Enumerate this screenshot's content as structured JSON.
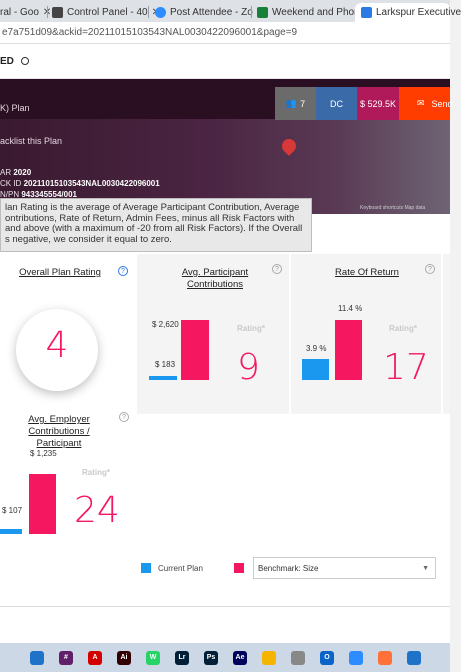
{
  "browser": {
    "tabs": [
      {
        "title": "ral - Goo",
        "color": "#34a853"
      },
      {
        "title": "Control Panel - 40",
        "color": "#444444"
      },
      {
        "title": "Post Attendee - Zo",
        "color": "#2d8cff"
      },
      {
        "title": "Weekend and Phon",
        "color": "#188038"
      },
      {
        "title": "Larkspur Executive",
        "color": "#2c7be5"
      }
    ],
    "close_glyph": "✕",
    "url": "e7a751d09&ackid=20211015103543NAL0030422096001&page=9"
  },
  "header": {
    "status_text": "ED"
  },
  "banner": {
    "plan_name": "K) Plan",
    "backlist": "acklist this Plan",
    "year_label": "AR",
    "year": "2020",
    "ack_label": "CK ID",
    "ack_id": "20211015103543NAL0030422096001",
    "ein_label": "N/PN",
    "ein": "943345554/001",
    "map_note": "Keyboard shortcuts    Map data",
    "stats": {
      "participants": "7",
      "state": "DC",
      "assets": "$ 529.5K",
      "send": "Send"
    }
  },
  "tooltip": {
    "text": "lan Rating is the average of Average Participant Contribution, Average ontributions, Rate of Return, Admin Fees, minus all Risk Factors with and above (with a maximum of -20 from all Risk Factors). If the Overall s negative, we consider it equal to zero."
  },
  "cards": {
    "overall": {
      "title": "Overall Plan Rating",
      "value": "4"
    },
    "avg_participant": {
      "title": "Avg. Participant Contributions",
      "current": "$ 183",
      "benchmark": "$ 2,620",
      "rating_label": "Rating*",
      "rating": "9"
    },
    "rate_of_return": {
      "title": "Rate Of Return",
      "current": "3.9 %",
      "benchmark": "11.4 %",
      "rating_label": "Rating*",
      "rating": "17"
    },
    "avg_employer": {
      "title_line1": "Avg. Employer Contributions /",
      "title_line2": "Participant",
      "current": "$ 107",
      "benchmark": "$ 1,235",
      "rating_label": "Rating*",
      "rating": "24"
    }
  },
  "chart_data": [
    {
      "type": "bar",
      "title": "Avg. Participant Contributions",
      "categories": [
        "Current Plan",
        "Benchmark: Size"
      ],
      "values": [
        183,
        2620
      ]
    },
    {
      "type": "bar",
      "title": "Rate Of Return",
      "categories": [
        "Current Plan",
        "Benchmark: Size"
      ],
      "values": [
        3.9,
        11.4
      ]
    },
    {
      "type": "bar",
      "title": "Avg. Employer Contributions / Participant",
      "categories": [
        "Current Plan",
        "Benchmark: Size"
      ],
      "values": [
        107,
        1235
      ]
    }
  ],
  "legend": {
    "current": "Current Plan",
    "benchmark_select": "Benchmark: Size",
    "current_color": "#1a98f0",
    "benchmark_color": "#f5175f"
  },
  "taskbar": {
    "apps": [
      {
        "name": "mail-app-icon",
        "label": "",
        "color": "#1e73c8"
      },
      {
        "name": "slack-app-icon",
        "label": "#",
        "color": "#611f69"
      },
      {
        "name": "acrobat-app-icon",
        "label": "A",
        "color": "#d40000"
      },
      {
        "name": "illustrator-app-icon",
        "label": "Ai",
        "color": "#330000"
      },
      {
        "name": "whatsapp-app-icon",
        "label": "W",
        "color": "#25d366"
      },
      {
        "name": "lightroom-app-icon",
        "label": "Lr",
        "color": "#001e36"
      },
      {
        "name": "photoshop-app-icon",
        "label": "Ps",
        "color": "#001e36"
      },
      {
        "name": "aftereffects-app-icon",
        "label": "Ae",
        "color": "#00005b"
      },
      {
        "name": "chrome-app-icon",
        "label": "",
        "color": "#f4b400"
      },
      {
        "name": "settings-app-icon",
        "label": "",
        "color": "#888888"
      },
      {
        "name": "outlook-app-icon",
        "label": "O",
        "color": "#0a64c8"
      },
      {
        "name": "zoom-app-icon",
        "label": "",
        "color": "#2d8cff"
      },
      {
        "name": "firefox-app-icon",
        "label": "",
        "color": "#ff7139"
      },
      {
        "name": "wifi-icon",
        "label": "",
        "color": "#1e73c8"
      }
    ]
  }
}
